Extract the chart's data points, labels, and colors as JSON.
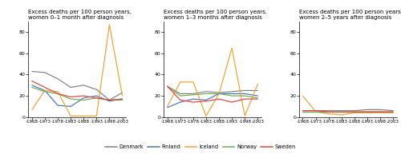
{
  "x_labels": [
    "-1968",
    "-1973",
    "-1978",
    "-1983",
    "-1988",
    "-1993",
    "-1998",
    "-2003"
  ],
  "x_values": [
    0,
    1,
    2,
    3,
    4,
    5,
    6,
    7
  ],
  "panels": [
    {
      "title": "Excess deaths per 100 person years,\nwomen 0–1 month after diagnosis",
      "Denmark": [
        43,
        42,
        36,
        28,
        30,
        26,
        16,
        23
      ],
      "Finland": [
        30,
        25,
        11,
        10,
        18,
        20,
        15,
        17
      ],
      "Iceland": [
        7,
        25,
        24,
        1,
        1,
        1,
        87,
        20
      ],
      "Norway": [
        28,
        24,
        22,
        17,
        16,
        18,
        16,
        16
      ],
      "Sweden": [
        34,
        28,
        22,
        19,
        20,
        18,
        16,
        17
      ]
    },
    {
      "title": "Excess deaths per 100 person years,\nwomen 1–3 months after diagnosis",
      "Denmark": [
        29,
        22,
        22,
        24,
        23,
        24,
        25,
        25
      ],
      "Finland": [
        9,
        14,
        17,
        16,
        22,
        22,
        22,
        20
      ],
      "Iceland": [
        10,
        33,
        33,
        1,
        22,
        65,
        1,
        31
      ],
      "Norway": [
        29,
        20,
        21,
        22,
        22,
        20,
        20,
        18
      ],
      "Sweden": [
        29,
        16,
        14,
        15,
        17,
        14,
        17,
        17
      ]
    },
    {
      "title": "Excess deaths per 100 person years,\nwomen 2–5 years after diagnosis",
      "Denmark": [
        6,
        6,
        6,
        6,
        6,
        7,
        7,
        6
      ],
      "Finland": [
        5,
        5,
        5,
        5,
        5,
        5,
        5,
        5
      ],
      "Iceland": [
        20,
        5,
        3,
        2,
        4,
        4,
        4,
        4
      ],
      "Norway": [
        5,
        5,
        5,
        5,
        5,
        5,
        5,
        5
      ],
      "Sweden": [
        6,
        6,
        5,
        5,
        5,
        5,
        5,
        5
      ]
    }
  ],
  "countries": [
    "Denmark",
    "Finland",
    "Iceland",
    "Norway",
    "Sweden"
  ],
  "colors": {
    "Denmark": "#808080",
    "Finland": "#4472c4",
    "Iceland": "#f0a030",
    "Norway": "#70ad47",
    "Sweden": "#e84040"
  },
  "ylim": [
    0,
    90
  ],
  "yticks": [
    0,
    20,
    40,
    60,
    80
  ],
  "panel_bg": "#ffffff",
  "fig_bg": "#ffffff"
}
